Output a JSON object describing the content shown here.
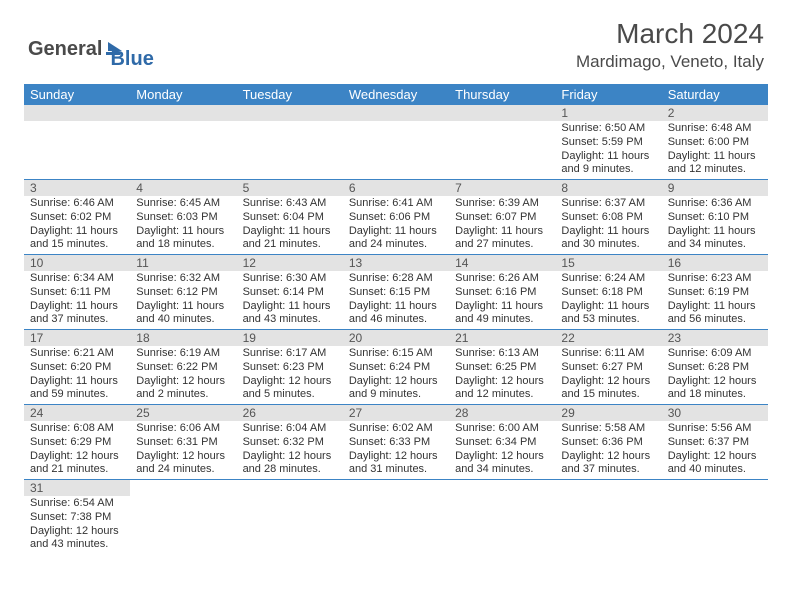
{
  "logo": {
    "text1": "General",
    "text2": "Blue"
  },
  "title": "March 2024",
  "location": "Mardimago, Veneto, Italy",
  "colors": {
    "header_bg": "#3c84c5",
    "header_text": "#ffffff",
    "daynum_bg": "#e3e3e3",
    "border": "#3c84c5",
    "logo_gray": "#4a4a4a",
    "logo_blue": "#2f6aa8"
  },
  "day_headers": [
    "Sunday",
    "Monday",
    "Tuesday",
    "Wednesday",
    "Thursday",
    "Friday",
    "Saturday"
  ],
  "weeks": [
    [
      null,
      null,
      null,
      null,
      null,
      {
        "d": "1",
        "sr": "6:50 AM",
        "ss": "5:59 PM",
        "dl": "11 hours and 9 minutes."
      },
      {
        "d": "2",
        "sr": "6:48 AM",
        "ss": "6:00 PM",
        "dl": "11 hours and 12 minutes."
      }
    ],
    [
      {
        "d": "3",
        "sr": "6:46 AM",
        "ss": "6:02 PM",
        "dl": "11 hours and 15 minutes."
      },
      {
        "d": "4",
        "sr": "6:45 AM",
        "ss": "6:03 PM",
        "dl": "11 hours and 18 minutes."
      },
      {
        "d": "5",
        "sr": "6:43 AM",
        "ss": "6:04 PM",
        "dl": "11 hours and 21 minutes."
      },
      {
        "d": "6",
        "sr": "6:41 AM",
        "ss": "6:06 PM",
        "dl": "11 hours and 24 minutes."
      },
      {
        "d": "7",
        "sr": "6:39 AM",
        "ss": "6:07 PM",
        "dl": "11 hours and 27 minutes."
      },
      {
        "d": "8",
        "sr": "6:37 AM",
        "ss": "6:08 PM",
        "dl": "11 hours and 30 minutes."
      },
      {
        "d": "9",
        "sr": "6:36 AM",
        "ss": "6:10 PM",
        "dl": "11 hours and 34 minutes."
      }
    ],
    [
      {
        "d": "10",
        "sr": "6:34 AM",
        "ss": "6:11 PM",
        "dl": "11 hours and 37 minutes."
      },
      {
        "d": "11",
        "sr": "6:32 AM",
        "ss": "6:12 PM",
        "dl": "11 hours and 40 minutes."
      },
      {
        "d": "12",
        "sr": "6:30 AM",
        "ss": "6:14 PM",
        "dl": "11 hours and 43 minutes."
      },
      {
        "d": "13",
        "sr": "6:28 AM",
        "ss": "6:15 PM",
        "dl": "11 hours and 46 minutes."
      },
      {
        "d": "14",
        "sr": "6:26 AM",
        "ss": "6:16 PM",
        "dl": "11 hours and 49 minutes."
      },
      {
        "d": "15",
        "sr": "6:24 AM",
        "ss": "6:18 PM",
        "dl": "11 hours and 53 minutes."
      },
      {
        "d": "16",
        "sr": "6:23 AM",
        "ss": "6:19 PM",
        "dl": "11 hours and 56 minutes."
      }
    ],
    [
      {
        "d": "17",
        "sr": "6:21 AM",
        "ss": "6:20 PM",
        "dl": "11 hours and 59 minutes."
      },
      {
        "d": "18",
        "sr": "6:19 AM",
        "ss": "6:22 PM",
        "dl": "12 hours and 2 minutes."
      },
      {
        "d": "19",
        "sr": "6:17 AM",
        "ss": "6:23 PM",
        "dl": "12 hours and 5 minutes."
      },
      {
        "d": "20",
        "sr": "6:15 AM",
        "ss": "6:24 PM",
        "dl": "12 hours and 9 minutes."
      },
      {
        "d": "21",
        "sr": "6:13 AM",
        "ss": "6:25 PM",
        "dl": "12 hours and 12 minutes."
      },
      {
        "d": "22",
        "sr": "6:11 AM",
        "ss": "6:27 PM",
        "dl": "12 hours and 15 minutes."
      },
      {
        "d": "23",
        "sr": "6:09 AM",
        "ss": "6:28 PM",
        "dl": "12 hours and 18 minutes."
      }
    ],
    [
      {
        "d": "24",
        "sr": "6:08 AM",
        "ss": "6:29 PM",
        "dl": "12 hours and 21 minutes."
      },
      {
        "d": "25",
        "sr": "6:06 AM",
        "ss": "6:31 PM",
        "dl": "12 hours and 24 minutes."
      },
      {
        "d": "26",
        "sr": "6:04 AM",
        "ss": "6:32 PM",
        "dl": "12 hours and 28 minutes."
      },
      {
        "d": "27",
        "sr": "6:02 AM",
        "ss": "6:33 PM",
        "dl": "12 hours and 31 minutes."
      },
      {
        "d": "28",
        "sr": "6:00 AM",
        "ss": "6:34 PM",
        "dl": "12 hours and 34 minutes."
      },
      {
        "d": "29",
        "sr": "5:58 AM",
        "ss": "6:36 PM",
        "dl": "12 hours and 37 minutes."
      },
      {
        "d": "30",
        "sr": "5:56 AM",
        "ss": "6:37 PM",
        "dl": "12 hours and 40 minutes."
      }
    ],
    [
      {
        "d": "31",
        "sr": "6:54 AM",
        "ss": "7:38 PM",
        "dl": "12 hours and 43 minutes."
      },
      null,
      null,
      null,
      null,
      null,
      null
    ]
  ],
  "labels": {
    "sunrise": "Sunrise:",
    "sunset": "Sunset:",
    "daylight": "Daylight:"
  }
}
